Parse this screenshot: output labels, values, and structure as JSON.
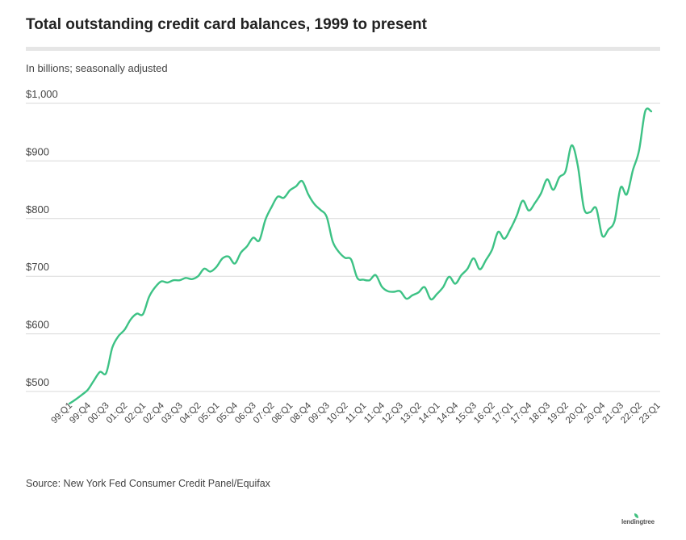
{
  "header": {
    "title": "Total outstanding credit card balances, 1999 to present",
    "subtitle": "In billions; seasonally adjusted"
  },
  "footer": {
    "source": "Source: New York Fed Consumer Credit Panel/Equifax",
    "logo": "lendingtree"
  },
  "colors": {
    "line": "#3dc285",
    "grid": "#d9d9d9",
    "text": "#333333"
  },
  "chart_data": {
    "type": "line",
    "title": "Total outstanding credit card balances, 1999 to present",
    "subtitle": "In billions; seasonally adjusted",
    "ylim": [
      480,
      1000
    ],
    "yticks": [
      500,
      600,
      700,
      800,
      900,
      1000
    ],
    "ytick_labels": [
      "$500",
      "$600",
      "$700",
      "$800",
      "$900",
      "$1,000"
    ],
    "grid": true,
    "x_start": "99:Q1",
    "xtick_labels": [
      "99:Q1",
      "99:Q4",
      "00:Q3",
      "01:Q2",
      "02:Q1",
      "02:Q4",
      "03:Q3",
      "04:Q2",
      "05:Q1",
      "05:Q4",
      "06:Q3",
      "07:Q2",
      "08:Q1",
      "08:Q4",
      "09:Q3",
      "10:Q2",
      "11:Q1",
      "11:Q4",
      "12:Q3",
      "13:Q2",
      "14:Q1",
      "14:Q4",
      "15:Q3",
      "16:Q2",
      "17:Q1",
      "17:Q4",
      "18:Q3",
      "19:Q2",
      "20:Q1",
      "20:Q4",
      "21:Q3",
      "22:Q2",
      "23:Q1"
    ],
    "series": [
      {
        "values": [
          479,
          486,
          494,
          503,
          519,
          534,
          532,
          576,
          596,
          607,
          625,
          635,
          634,
          664,
          681,
          691,
          689,
          693,
          693,
          697,
          695,
          700,
          713,
          708,
          716,
          731,
          734,
          722,
          741,
          752,
          767,
          762,
          798,
          820,
          838,
          836,
          849,
          856,
          865,
          842,
          825,
          815,
          803,
          760,
          742,
          732,
          729,
          697,
          694,
          693,
          702,
          682,
          674,
          673,
          674,
          661,
          667,
          672,
          681,
          660,
          669,
          681,
          699,
          687,
          702,
          713,
          731,
          712,
          728,
          746,
          777,
          765,
          782,
          804,
          831,
          814,
          827,
          844,
          868,
          850,
          872,
          882,
          927,
          892,
          818,
          811,
          818,
          770,
          781,
          796,
          854,
          842,
          884,
          918,
          986,
          986
        ]
      }
    ]
  }
}
